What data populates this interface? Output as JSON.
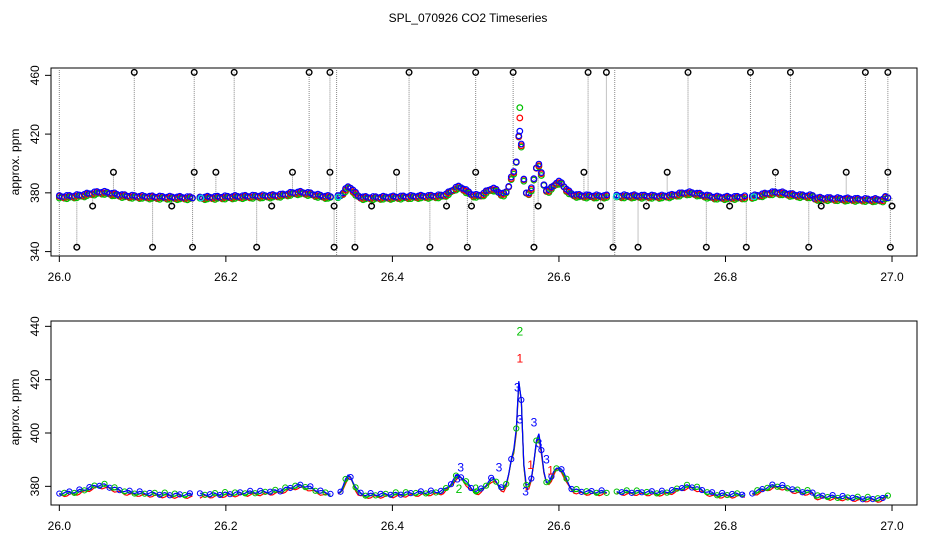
{
  "title": "SPL_070926  CO2 Timeseries",
  "colors": {
    "black": "#000000",
    "red": "#ff0000",
    "green": "#00c000",
    "blue": "#0000ff",
    "cyan": "#00e0e0",
    "drop": "#888888"
  },
  "chart_data": [
    {
      "type": "scatter",
      "panel": "top",
      "title": "SPL_070926  CO2 Timeseries",
      "xlabel": "",
      "ylabel": "approx. ppm",
      "xlim": [
        25.99,
        27.03
      ],
      "ylim": [
        337,
        465
      ],
      "xticks": [
        "26.0",
        "26.2",
        "26.4",
        "26.6",
        "26.8",
        "27.0"
      ],
      "xtick_values": [
        26.0,
        26.2,
        26.4,
        26.6,
        26.8,
        27.0
      ],
      "yticks": [
        "340",
        "380",
        "420",
        "460"
      ],
      "ytick_values": [
        340,
        380,
        420,
        460
      ],
      "gaps": [
        [
          26.162,
          26.168
        ],
        [
          26.327,
          26.333
        ],
        [
          26.66,
          26.667
        ],
        [
          26.825,
          26.832
        ]
      ],
      "peak": {
        "x": 26.553,
        "values": {
          "green": 438,
          "red": 431,
          "blue": 422
        }
      },
      "baseline_ppm": 377,
      "outlier_values": [
        343,
        462
      ],
      "outliers_high_x": [
        26.09,
        26.162,
        26.21,
        26.3,
        26.325,
        26.42,
        26.5,
        26.545,
        26.635,
        26.657,
        26.755,
        26.83,
        26.878,
        26.968,
        26.995
      ],
      "outliers_low_x": [
        26.021,
        26.112,
        26.16,
        26.237,
        26.33,
        26.355,
        26.445,
        26.49,
        26.57,
        26.665,
        26.695,
        26.777,
        26.825,
        26.9,
        26.998
      ],
      "outliers_mid": [
        [
          26.065,
          394
        ],
        [
          26.162,
          394
        ],
        [
          26.188,
          394
        ],
        [
          26.28,
          394
        ],
        [
          26.325,
          394
        ],
        [
          26.405,
          394
        ],
        [
          26.5,
          394
        ],
        [
          26.63,
          394
        ],
        [
          26.73,
          394
        ],
        [
          26.86,
          394
        ],
        [
          26.945,
          394
        ],
        [
          26.995,
          394
        ],
        [
          26.04,
          371
        ],
        [
          26.135,
          371
        ],
        [
          26.255,
          371
        ],
        [
          26.33,
          371
        ],
        [
          26.375,
          371
        ],
        [
          26.465,
          371
        ],
        [
          26.495,
          371
        ],
        [
          26.575,
          371
        ],
        [
          26.65,
          371
        ],
        [
          26.705,
          371
        ],
        [
          26.805,
          371
        ],
        [
          26.915,
          371
        ],
        [
          27.0,
          371
        ]
      ]
    },
    {
      "type": "line",
      "panel": "bottom",
      "xlabel": "",
      "ylabel": "approx. ppm",
      "xlim": [
        25.99,
        27.03
      ],
      "ylim": [
        373,
        442
      ],
      "xticks": [
        "26.0",
        "26.2",
        "26.4",
        "26.6",
        "26.8",
        "27.0"
      ],
      "xtick_values": [
        26.0,
        26.2,
        26.4,
        26.6,
        26.8,
        27.0
      ],
      "yticks": [
        "380",
        "400",
        "420",
        "440"
      ],
      "ytick_values": [
        380,
        400,
        420,
        440
      ],
      "series": [
        {
          "name": "1",
          "color": "red"
        },
        {
          "name": "2",
          "color": "green"
        },
        {
          "name": "3",
          "color": "blue"
        }
      ],
      "peak": {
        "x": 26.553,
        "label": "2",
        "value": 438
      }
    }
  ]
}
